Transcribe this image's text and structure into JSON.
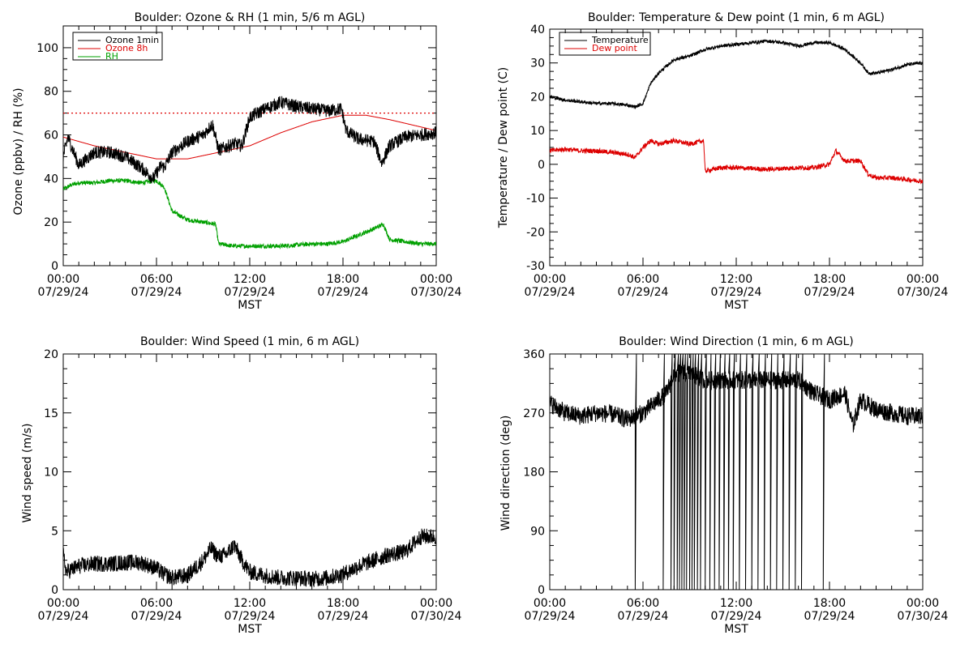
{
  "x_axis": {
    "time_labels": [
      "00:00",
      "06:00",
      "12:00",
      "18:00",
      "00:00"
    ],
    "date_labels": [
      "07/29/24",
      "07/29/24",
      "07/29/24",
      "07/29/24",
      "07/30/24"
    ],
    "xlabel": "MST",
    "range_hours": [
      0,
      24
    ]
  },
  "chart_data": [
    {
      "id": "ozone_rh",
      "type": "line",
      "title": "Boulder: Ozone & RH (1 min, 5/6 m AGL)",
      "xlabel": "MST",
      "ylabel": "Ozone (ppbv) / RH (%)",
      "ylim": [
        0,
        110
      ],
      "yticks": [
        0,
        20,
        40,
        60,
        80,
        100
      ],
      "reference_line": {
        "y": 70,
        "color": "#dd0000",
        "style": "dotted"
      },
      "legend": {
        "placement": "top-left"
      },
      "series": [
        {
          "name": "Ozone 1min",
          "color": "#000000",
          "noise": 3.0,
          "x": [
            0,
            0.3,
            1,
            2,
            3,
            4,
            5,
            5.8,
            6.3,
            6.5,
            7,
            8,
            9,
            9.6,
            10,
            11,
            11.5,
            12,
            13,
            14,
            15,
            16,
            17,
            17.9,
            18.2,
            19,
            20,
            20.5,
            21,
            22,
            23,
            24
          ],
          "y": [
            50,
            59,
            46,
            52,
            52,
            50,
            45,
            40,
            46,
            45,
            52,
            57,
            60,
            65,
            53,
            56,
            55,
            68,
            72,
            75,
            73,
            72,
            71,
            72,
            62,
            58,
            57,
            47,
            55,
            59,
            60,
            61
          ]
        },
        {
          "name": "Ozone 8h",
          "color": "#dd0000",
          "noise": 0,
          "x": [
            0,
            2,
            4,
            6,
            8,
            10,
            12,
            14,
            16,
            18,
            19.5,
            21,
            24
          ],
          "y": [
            59,
            55,
            52,
            49,
            49,
            52,
            55,
            61,
            66,
            69,
            69,
            67,
            62
          ]
        },
        {
          "name": "RH",
          "color": "#00a000",
          "noise": 1.0,
          "x": [
            0,
            0.5,
            1,
            2,
            3,
            4,
            5,
            6,
            6.5,
            7,
            8,
            9,
            9.8,
            10,
            11,
            12,
            14,
            16,
            17,
            18,
            19,
            20,
            20.6,
            21,
            22,
            23,
            24
          ],
          "y": [
            35,
            37,
            38,
            38,
            39,
            39,
            38,
            39,
            36,
            25,
            21,
            20,
            19,
            10,
            9,
            9,
            9,
            10,
            10,
            11,
            14,
            17,
            19,
            12,
            11,
            10,
            10
          ]
        }
      ]
    },
    {
      "id": "temp_dew",
      "type": "line",
      "title": "Boulder: Temperature & Dew point (1 min, 6 m AGL)",
      "xlabel": "MST",
      "ylabel": "Temperature / Dew point (C)",
      "ylim": [
        -30,
        40
      ],
      "yticks": [
        -30,
        -20,
        -10,
        0,
        10,
        20,
        30,
        40
      ],
      "legend": {
        "placement": "top-left"
      },
      "series": [
        {
          "name": "Temperature",
          "color": "#000000",
          "noise": 0.5,
          "x": [
            0,
            1,
            2,
            3,
            4,
            5,
            5.5,
            6,
            6.5,
            7,
            8,
            9,
            10,
            11,
            12,
            13,
            14,
            15,
            16,
            17,
            18,
            19,
            20,
            20.5,
            21,
            22,
            23,
            24
          ],
          "y": [
            20,
            19,
            18.5,
            18,
            18,
            17.5,
            17,
            18,
            24,
            27,
            31,
            32,
            34,
            35,
            35.5,
            36,
            36.5,
            36,
            35,
            36,
            36,
            34,
            30,
            27,
            27,
            28,
            29.5,
            30
          ]
        },
        {
          "name": "Dew point",
          "color": "#dd0000",
          "noise": 0.7,
          "x": [
            0,
            1,
            2,
            3,
            4,
            5,
            5.5,
            6,
            6.5,
            7,
            8,
            9,
            9.9,
            10,
            11,
            12,
            14,
            16,
            17,
            18,
            18.4,
            19,
            20,
            20.5,
            21,
            22,
            23,
            24
          ],
          "y": [
            4,
            4.5,
            4,
            4,
            3.5,
            3,
            2,
            5,
            7,
            6,
            7,
            6,
            7,
            -2,
            -1,
            -1,
            -1.5,
            -1,
            -1,
            0,
            4,
            1,
            1,
            -3,
            -4,
            -4,
            -4.5,
            -5
          ]
        }
      ]
    },
    {
      "id": "wind_speed",
      "type": "line",
      "title": "Boulder: Wind Speed (1 min, 6 m AGL)",
      "xlabel": "MST",
      "ylabel": "Wind speed (m/s)",
      "ylim": [
        0,
        20
      ],
      "yticks": [
        0,
        5,
        10,
        15,
        20
      ],
      "series": [
        {
          "color": "#000000",
          "noise": 0.7,
          "x": [
            0,
            0.2,
            1,
            2,
            3,
            4,
            5,
            6,
            6.5,
            7,
            8,
            9,
            9.5,
            10,
            10.5,
            11,
            11.5,
            12,
            13,
            14,
            15,
            16,
            17,
            18,
            19,
            20,
            21,
            22,
            23,
            23.6,
            24
          ],
          "y": [
            3,
            1.5,
            2,
            2.2,
            2.2,
            2.3,
            2.3,
            1.8,
            1.3,
            1,
            1.2,
            2.5,
            3.5,
            2.8,
            3,
            3.8,
            2.5,
            1.5,
            1.2,
            1,
            1,
            0.9,
            1,
            1.3,
            2,
            2.5,
            3,
            3.2,
            4.5,
            4.5,
            4.5
          ]
        }
      ]
    },
    {
      "id": "wind_dir",
      "type": "line",
      "title": "Boulder: Wind Direction (1 min, 6 m AGL)",
      "xlabel": "MST",
      "ylabel": "Wind direction (deg)",
      "ylim": [
        0,
        360
      ],
      "yticks": [
        0,
        90,
        180,
        270,
        360
      ],
      "series": [
        {
          "color": "#000000",
          "noise": 14,
          "x": [
            0,
            1,
            2,
            3,
            4,
            5,
            6,
            7,
            7.5,
            8,
            9,
            10,
            11,
            12,
            13,
            14,
            15,
            16,
            17,
            18,
            19,
            19.5,
            20,
            21,
            22,
            23,
            24
          ],
          "y": [
            285,
            270,
            265,
            270,
            268,
            260,
            270,
            290,
            300,
            330,
            330,
            320,
            320,
            320,
            320,
            320,
            320,
            320,
            300,
            290,
            300,
            250,
            290,
            275,
            270,
            265,
            265
          ],
          "wrap_spikes_hours": [
            5.5,
            7.3,
            7.8,
            8.0,
            8.2,
            8.35,
            8.5,
            8.65,
            8.8,
            9.0,
            9.15,
            9.3,
            9.5,
            9.7,
            10.0,
            10.3,
            10.6,
            10.9,
            11.2,
            11.5,
            11.8,
            12.2,
            12.6,
            13.0,
            13.4,
            13.8,
            14.2,
            14.6,
            15.0,
            15.4,
            15.8,
            16.2,
            17.6
          ]
        }
      ]
    }
  ]
}
